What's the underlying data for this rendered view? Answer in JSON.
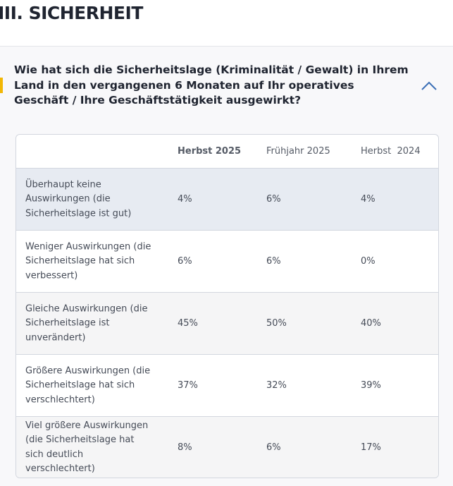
{
  "header": {
    "title": "III. SICHERHEIT"
  },
  "question": {
    "text": "Wie hat sich die Sicherheitslage (Kriminalität / Gewalt) in Ihrem Land in den vergangenen 6 Monaten auf Ihr operatives Geschäft / Ihre Geschäftstätigkeit ausgewirkt?"
  },
  "table": {
    "columns": [
      "Herbst 2025",
      "Frühjahr 2025",
      "Herbst  2024"
    ],
    "rows": [
      [
        "Überhaupt keine Auswirkungen (die Sicherheitslage ist gut)",
        "4%",
        "6%",
        "4%"
      ],
      [
        "Weniger Auswirkungen (die Sicherheitslage hat sich verbessert)",
        "6%",
        "6%",
        "0%"
      ],
      [
        "Gleiche Auswirkungen (die Sicherheitslage ist unverändert)",
        "45%",
        "50%",
        "40%"
      ],
      [
        "Größere Auswirkungen (die Sicherheitslage hat sich verschlechtert)",
        "37%",
        "32%",
        "39%"
      ],
      [
        "Viel größere Auswirkungen (die Sicherheitslage hat sich deutlich verschlechtert)",
        "8%",
        "6%",
        "17%"
      ]
    ]
  }
}
